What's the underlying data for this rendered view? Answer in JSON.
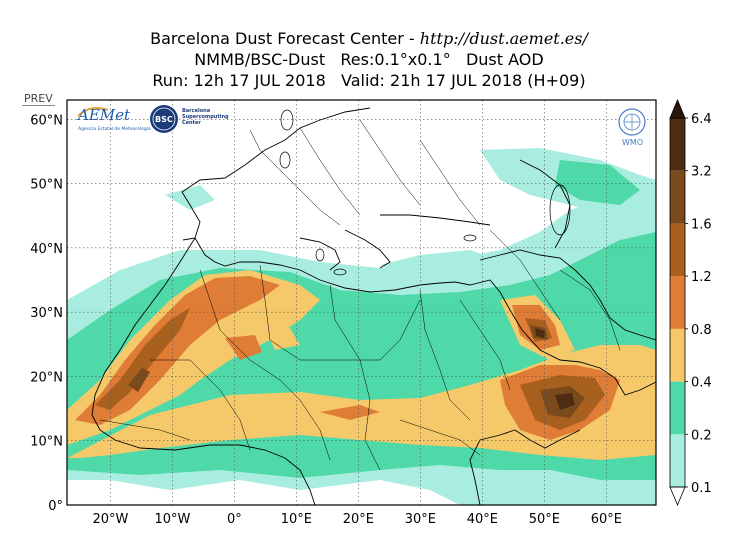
{
  "header": {
    "line1_prefix": "Barcelona Dust Forecast Center - ",
    "line1_url": "http://dust.aemet.es/",
    "line2": "NMMB/BSC-Dust   Res:0.1°x0.1°   Dust AOD",
    "line3": "Run: 12h 17 JUL 2018   Valid: 21h 17 JUL 2018 (H+09)"
  },
  "prev_button": "PREV",
  "logos": {
    "aemet": "AEMet",
    "aemet_sub": "Agencia Estatal de Meteorología",
    "bsc": "BSC",
    "bsc_text_1": "Barcelona",
    "bsc_text_2": "Supercomputing",
    "bsc_text_3": "Center",
    "wmo": "WMO"
  },
  "map": {
    "lon_range": [
      -27,
      68
    ],
    "lat_range": [
      0,
      63
    ],
    "lon_ticks": [
      {
        "value": -20,
        "label": "20°W"
      },
      {
        "value": -10,
        "label": "10°W"
      },
      {
        "value": 0,
        "label": "0°"
      },
      {
        "value": 10,
        "label": "10°E"
      },
      {
        "value": 20,
        "label": "20°E"
      },
      {
        "value": 30,
        "label": "30°E"
      },
      {
        "value": 40,
        "label": "40°E"
      },
      {
        "value": 50,
        "label": "50°E"
      },
      {
        "value": 60,
        "label": "60°E"
      }
    ],
    "lat_ticks": [
      {
        "value": 0,
        "label": "0°"
      },
      {
        "value": 10,
        "label": "10°N"
      },
      {
        "value": 20,
        "label": "20°N"
      },
      {
        "value": 30,
        "label": "30°N"
      },
      {
        "value": 40,
        "label": "40°N"
      },
      {
        "value": 50,
        "label": "50°N"
      },
      {
        "value": 60,
        "label": "60°N"
      }
    ],
    "grid": "dotted"
  },
  "colorbar": {
    "levels": [
      "0.1",
      "0.2",
      "0.4",
      "0.8",
      "1.2",
      "1.6",
      "3.2",
      "6.4"
    ],
    "colors": [
      "#a9ede0",
      "#4fd9a8",
      "#f5c96a",
      "#df7c35",
      "#a8601f",
      "#7a4a1c",
      "#4e2c12"
    ],
    "extend_over_color": "#2b180a",
    "extend_under_color": "#ffffff"
  }
}
